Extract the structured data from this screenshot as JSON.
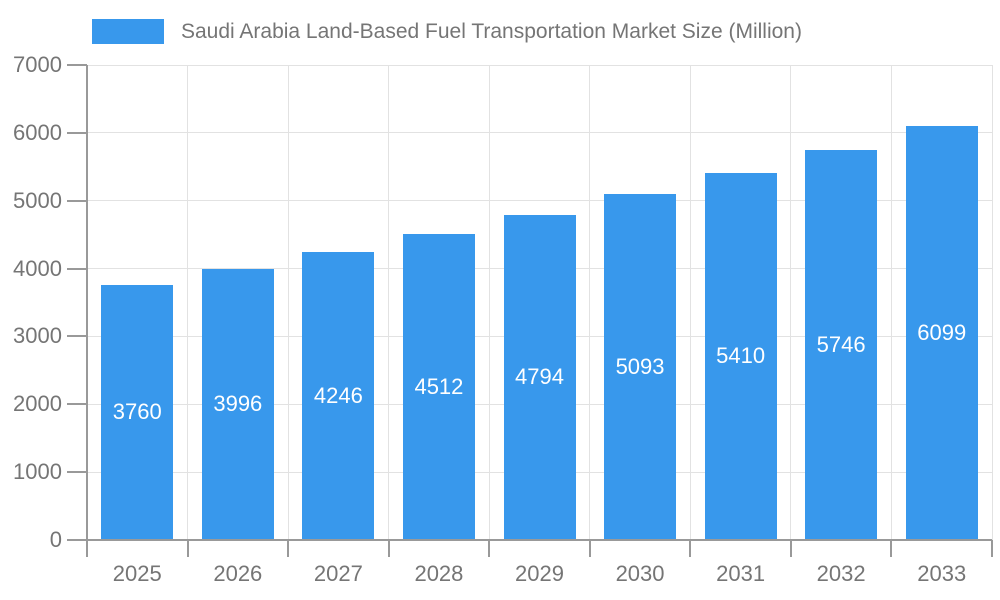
{
  "chart_data": {
    "type": "bar",
    "title": "Saudi Arabia Land-Based Fuel Transportation Market Size (Million)",
    "series_name": "Saudi Arabia Land-Based Fuel Transportation Market Size (Million)",
    "categories": [
      "2025",
      "2026",
      "2027",
      "2028",
      "2029",
      "2030",
      "2031",
      "2032",
      "2033"
    ],
    "values": [
      3760,
      3996,
      4246,
      4512,
      4794,
      5093,
      5410,
      5746,
      6099
    ],
    "xlabel": "",
    "ylabel": "",
    "ylim": [
      0,
      7000
    ],
    "yticks": [
      0,
      1000,
      2000,
      3000,
      4000,
      5000,
      6000,
      7000
    ],
    "grid": true,
    "legend_position": "top-left",
    "value_labels": "inside-center",
    "colors": {
      "bar": "#3898EC",
      "bar_label": "#FFFFFF",
      "axis": "#999999",
      "grid": "#E2E2E2",
      "tick_label": "#757575",
      "legend_text": "#757575",
      "background": "#FFFFFF"
    }
  }
}
